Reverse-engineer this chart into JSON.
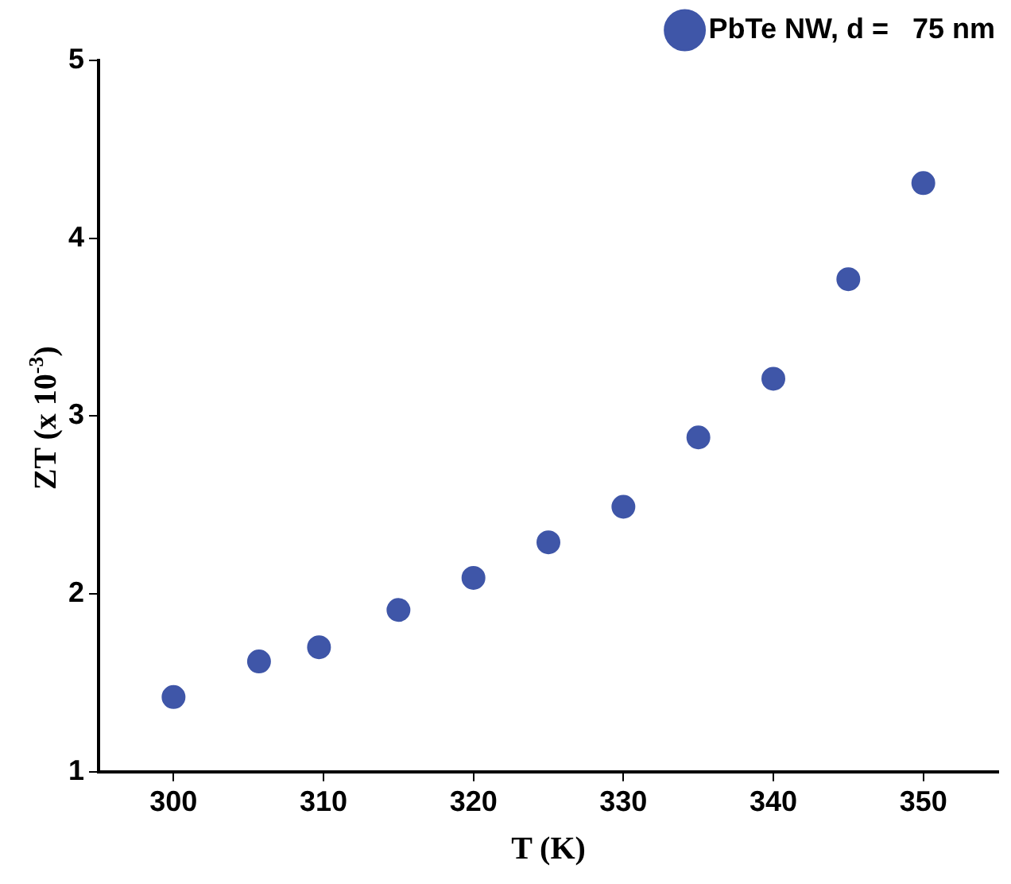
{
  "chart_data": {
    "type": "scatter",
    "xlabel": "T (K)",
    "ylabel": "ZT (x 10$^{-3}$)",
    "x": [
      300,
      305.7,
      309.7,
      315,
      320,
      325,
      330,
      335,
      340,
      345,
      350
    ],
    "series": [
      {
        "name": "PbTe NW, d =   75 nm",
        "color": "#3f56a8",
        "values": [
          1.42,
          1.62,
          1.7,
          1.91,
          2.09,
          2.29,
          2.49,
          2.88,
          3.21,
          3.77,
          4.31
        ]
      }
    ],
    "xlim": [
      295,
      355
    ],
    "xticks": [
      300,
      310,
      320,
      330,
      340,
      350
    ],
    "ylim": [
      1,
      5
    ],
    "yticks": [
      1,
      2,
      3,
      4,
      5
    ],
    "grid": false,
    "legend": "top right",
    "marker": "circle"
  }
}
